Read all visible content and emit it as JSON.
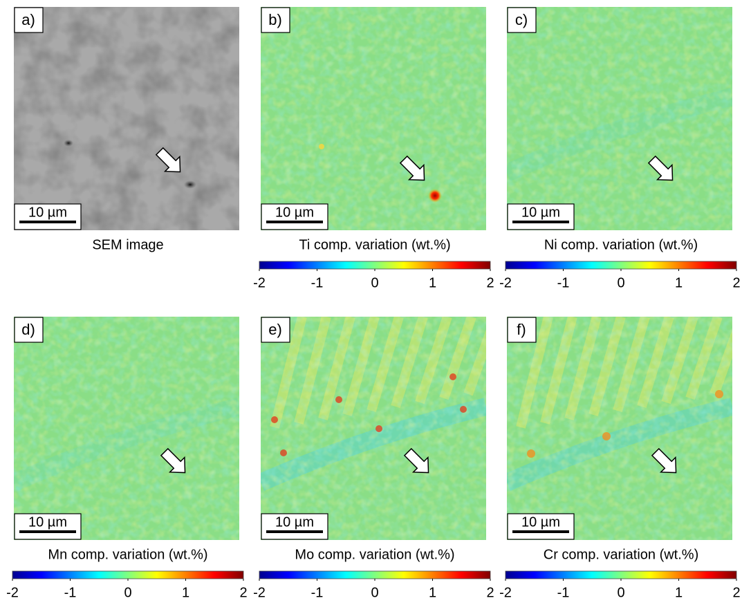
{
  "panels": [
    {
      "label": "a)",
      "caption": "SEM image",
      "scale_bar": "10 µm"
    },
    {
      "label": "b)",
      "caption": "Ti comp. variation (wt.%)",
      "scale_bar": "10 µm",
      "colorbar": {
        "range": [
          -2,
          2
        ],
        "ticks": [
          -2,
          -1,
          0,
          1,
          2
        ]
      }
    },
    {
      "label": "c)",
      "caption": "Ni comp. variation (wt.%)",
      "scale_bar": "10 µm",
      "colorbar": {
        "range": [
          -2,
          2
        ],
        "ticks": [
          -2,
          -1,
          0,
          1,
          2
        ]
      }
    },
    {
      "label": "d)",
      "caption": "Mn comp. variation (wt.%)",
      "scale_bar": "10 µm",
      "colorbar": {
        "range": [
          -2,
          2
        ],
        "ticks": [
          -2,
          -1,
          0,
          1,
          2
        ]
      }
    },
    {
      "label": "e)",
      "caption": "Mo comp. variation (wt.%)",
      "scale_bar": "10 µm",
      "colorbar": {
        "range": [
          -2,
          2
        ],
        "ticks": [
          -2,
          -1,
          0,
          1,
          2
        ]
      }
    },
    {
      "label": "f)",
      "caption": "Cr comp. variation (wt.%)",
      "scale_bar": "10 µm",
      "colorbar": {
        "range": [
          -2,
          2
        ],
        "ticks": [
          -2,
          -1,
          0,
          1,
          2
        ]
      }
    }
  ]
}
